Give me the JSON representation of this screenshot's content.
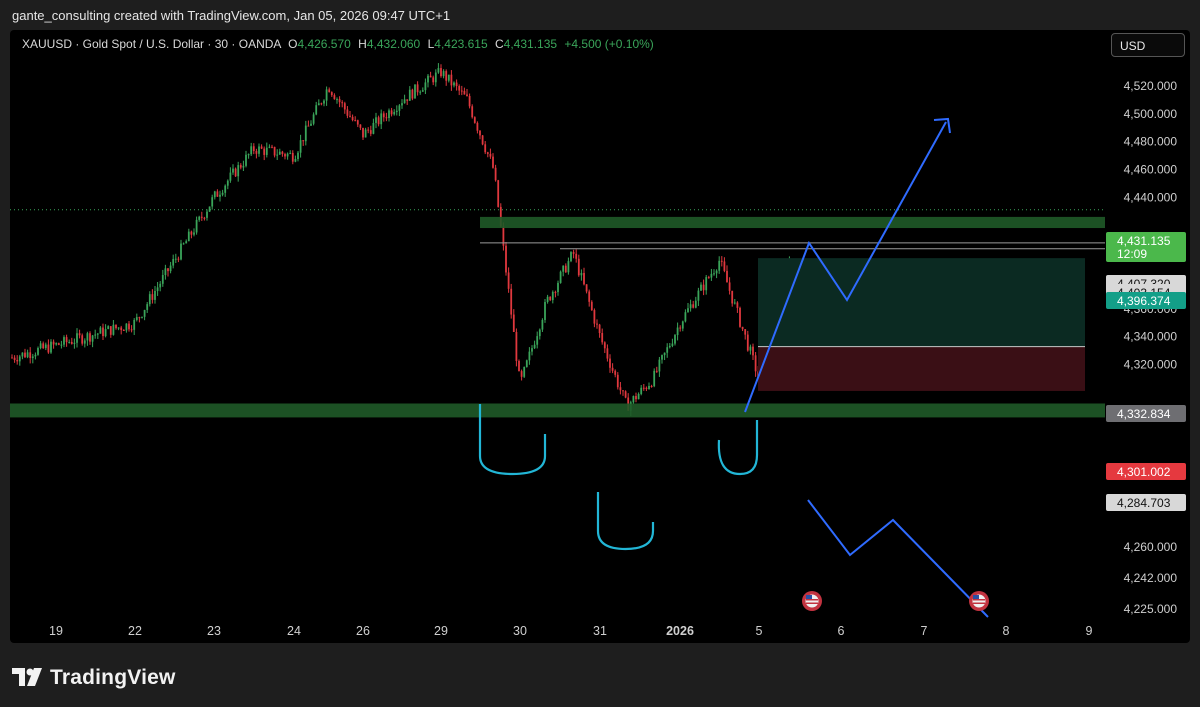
{
  "header": {
    "attribution": "gante_consulting created with TradingView.com, Jan 05, 2026 09:47 UTC+1"
  },
  "ticker": {
    "symbol": "XAUUSD · Gold Spot / U.S. Dollar · 30 · OANDA",
    "o_label": "O",
    "o_value": "4,426.570",
    "h_label": "H",
    "h_value": "4,432.060",
    "l_label": "L",
    "l_value": "4,423.615",
    "c_label": "C",
    "c_value": "4,431.135",
    "change": "+4.500 (+0.10%)"
  },
  "currency_button": "USD",
  "footer": {
    "brand": "TradingView",
    "logo_icon": "tradingview-logo-icon"
  },
  "colors": {
    "up": "#3aa55a",
    "down": "#e0383e",
    "zone": "#1f5a28",
    "arrow": "#2f6bff",
    "pattern": "#22b6d6",
    "target": "#0b2a22",
    "stop": "#3a0f15",
    "price_tag": "#4bb84b"
  },
  "chart_data": {
    "type": "candlestick",
    "symbol": "XAUUSD",
    "timeframe": "30",
    "yaxis_ticks": [
      "4,520.000",
      "4,500.000",
      "4,480.000",
      "4,460.000",
      "4,440.000",
      "4,380.000",
      "4,360.000",
      "4,340.000",
      "4,320.000",
      "4,260.000",
      "4,242.000",
      "4,225.000"
    ],
    "xaxis_ticks": [
      "19",
      "22",
      "23",
      "24",
      "26",
      "29",
      "30",
      "31",
      "2026",
      "5",
      "6",
      "7",
      "8",
      "9"
    ],
    "price_labels": [
      {
        "value": "4,431.135",
        "sub": "12:09",
        "kind": "last"
      },
      {
        "value": "4,407.320",
        "kind": "level"
      },
      {
        "value": "4,403.154",
        "kind": "level"
      },
      {
        "value": "4,396.374",
        "kind": "entry"
      },
      {
        "value": "4,332.834",
        "kind": "level"
      },
      {
        "value": "4,301.002",
        "kind": "stop"
      },
      {
        "value": "4,284.703",
        "kind": "level"
      }
    ],
    "close_path": [
      [
        "19",
        4325
      ],
      [
        "22",
        4350
      ],
      [
        "22",
        4395
      ],
      [
        "23",
        4440
      ],
      [
        "23",
        4475
      ],
      [
        "24",
        4470
      ],
      [
        "24",
        4520
      ],
      [
        "26",
        4485
      ],
      [
        "26",
        4510
      ],
      [
        "29",
        4530
      ],
      [
        "29",
        4510
      ],
      [
        "29",
        4460
      ],
      [
        "30",
        4305
      ],
      [
        "30",
        4365
      ],
      [
        "30",
        4400
      ],
      [
        "31",
        4340
      ],
      [
        "31",
        4290
      ],
      [
        "31",
        4310
      ],
      [
        "2026",
        4350
      ],
      [
        "2026",
        4395
      ],
      [
        "5",
        4310
      ],
      [
        "5",
        4431
      ]
    ],
    "zones": [
      {
        "from": 4418,
        "to": 4426
      },
      {
        "from": 4282,
        "to": 4292
      }
    ],
    "position": {
      "entry": 4396.374,
      "target": 4332.834,
      "stop": 4301.002
    }
  }
}
